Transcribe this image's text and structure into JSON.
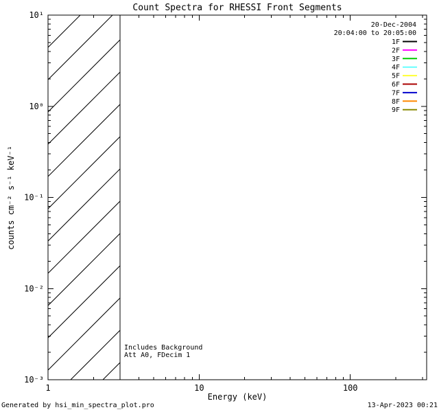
{
  "chart_data": {
    "type": "line",
    "title": "Count Spectra for RHESSI Front Segments",
    "xlabel": "Energy (keV)",
    "ylabel": "counts cm⁻² s⁻¹ keV⁻¹",
    "xscale": "log",
    "yscale": "log",
    "xlim": [
      1,
      320
    ],
    "ylim": [
      0.001,
      10
    ],
    "x_major_ticks": [
      1,
      10,
      100
    ],
    "y_major_ticks": [
      0.001,
      0.01,
      0.1,
      1,
      10
    ],
    "grid": false,
    "series": [],
    "hatched_region": {
      "x_from": 1,
      "x_to": 3,
      "style": "diagonal-hatch"
    },
    "annotations": [
      "Includes Background",
      "Att A0, FDecim 1"
    ],
    "legend": {
      "position": "top-right",
      "date": "20-Dec-2004",
      "time_range": "20:04:00 to 20:05:00",
      "entries": [
        {
          "label": "1F",
          "color": "#000000"
        },
        {
          "label": "2F",
          "color": "#ff00ff"
        },
        {
          "label": "3F",
          "color": "#00cc00"
        },
        {
          "label": "4F",
          "color": "#66ffff"
        },
        {
          "label": "5F",
          "color": "#ffff33"
        },
        {
          "label": "6F",
          "color": "#aa0000"
        },
        {
          "label": "7F",
          "color": "#0000cc"
        },
        {
          "label": "8F",
          "color": "#ff8800"
        },
        {
          "label": "9F",
          "color": "#8a8a00"
        }
      ]
    }
  },
  "footer": {
    "left": "Generated by hsi_min_spectra_plot.pro",
    "right": "13-Apr-2023 00:21"
  }
}
